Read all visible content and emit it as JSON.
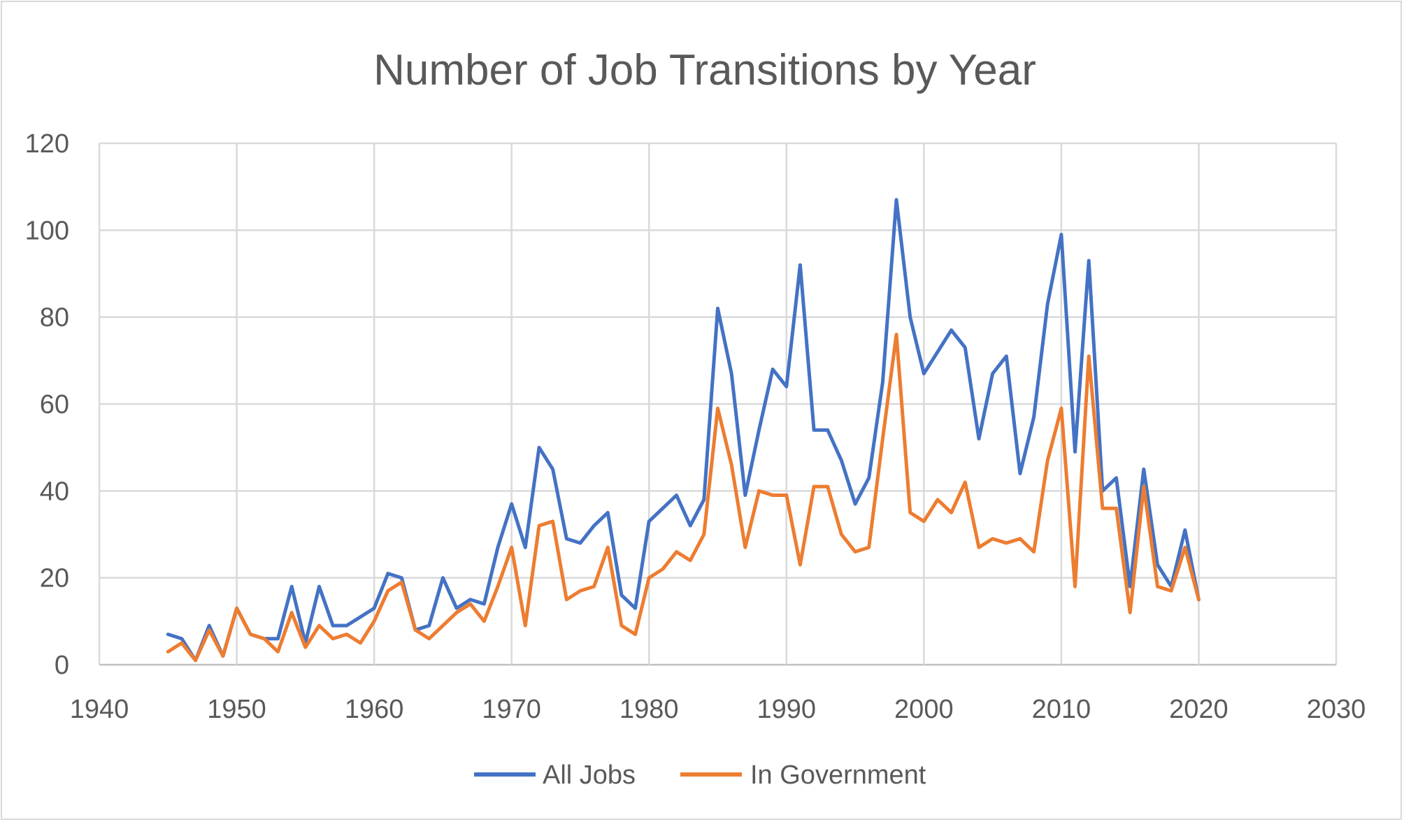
{
  "chart_data": {
    "type": "line",
    "title": "Number of Job Transitions by Year",
    "xlabel": "",
    "ylabel": "",
    "xlim": [
      1940,
      2030
    ],
    "ylim": [
      0,
      120
    ],
    "x_ticks": [
      "1940",
      "1950",
      "1960",
      "1970",
      "1980",
      "1990",
      "2000",
      "2010",
      "2020",
      "2030"
    ],
    "y_ticks": [
      "0",
      "20",
      "40",
      "60",
      "80",
      "100",
      "120"
    ],
    "grid": true,
    "legend_position": "bottom",
    "x": [
      1945,
      1946,
      1947,
      1948,
      1949,
      1950,
      1951,
      1952,
      1953,
      1954,
      1955,
      1956,
      1957,
      1958,
      1959,
      1960,
      1961,
      1962,
      1963,
      1964,
      1965,
      1966,
      1967,
      1968,
      1969,
      1970,
      1971,
      1972,
      1973,
      1974,
      1975,
      1976,
      1977,
      1978,
      1979,
      1980,
      1981,
      1982,
      1983,
      1984,
      1985,
      1986,
      1987,
      1988,
      1989,
      1990,
      1991,
      1992,
      1993,
      1994,
      1995,
      1996,
      1997,
      1998,
      1999,
      2000,
      2001,
      2002,
      2003,
      2004,
      2005,
      2006,
      2007,
      2008,
      2009,
      2010,
      2011,
      2012,
      2013,
      2014,
      2015,
      2016,
      2017,
      2018,
      2019,
      2020
    ],
    "series": [
      {
        "name": "All Jobs",
        "color": "#4472c4",
        "values": [
          7,
          6,
          1,
          9,
          2,
          13,
          7,
          6,
          6,
          18,
          5,
          18,
          9,
          9,
          11,
          13,
          21,
          20,
          8,
          9,
          20,
          13,
          15,
          14,
          27,
          37,
          27,
          50,
          45,
          29,
          28,
          32,
          35,
          16,
          13,
          33,
          36,
          39,
          32,
          38,
          82,
          67,
          39,
          54,
          68,
          64,
          92,
          54,
          54,
          47,
          37,
          43,
          65,
          107,
          80,
          67,
          72,
          77,
          73,
          52,
          67,
          71,
          44,
          57,
          83,
          99,
          49,
          93,
          40,
          43,
          18,
          45,
          23,
          18,
          31,
          15
        ]
      },
      {
        "name": "In Government",
        "color": "#ed7d31",
        "values": [
          3,
          5,
          1,
          8,
          2,
          13,
          7,
          6,
          3,
          12,
          4,
          9,
          6,
          7,
          5,
          10,
          17,
          19,
          8,
          6,
          9,
          12,
          14,
          10,
          18,
          27,
          9,
          32,
          33,
          15,
          17,
          18,
          27,
          9,
          7,
          20,
          22,
          26,
          24,
          30,
          59,
          46,
          27,
          40,
          39,
          39,
          23,
          41,
          41,
          30,
          26,
          27,
          52,
          76,
          35,
          33,
          38,
          35,
          42,
          27,
          29,
          28,
          29,
          26,
          47,
          59,
          18,
          71,
          36,
          36,
          12,
          41,
          18,
          17,
          27,
          15
        ]
      }
    ]
  }
}
